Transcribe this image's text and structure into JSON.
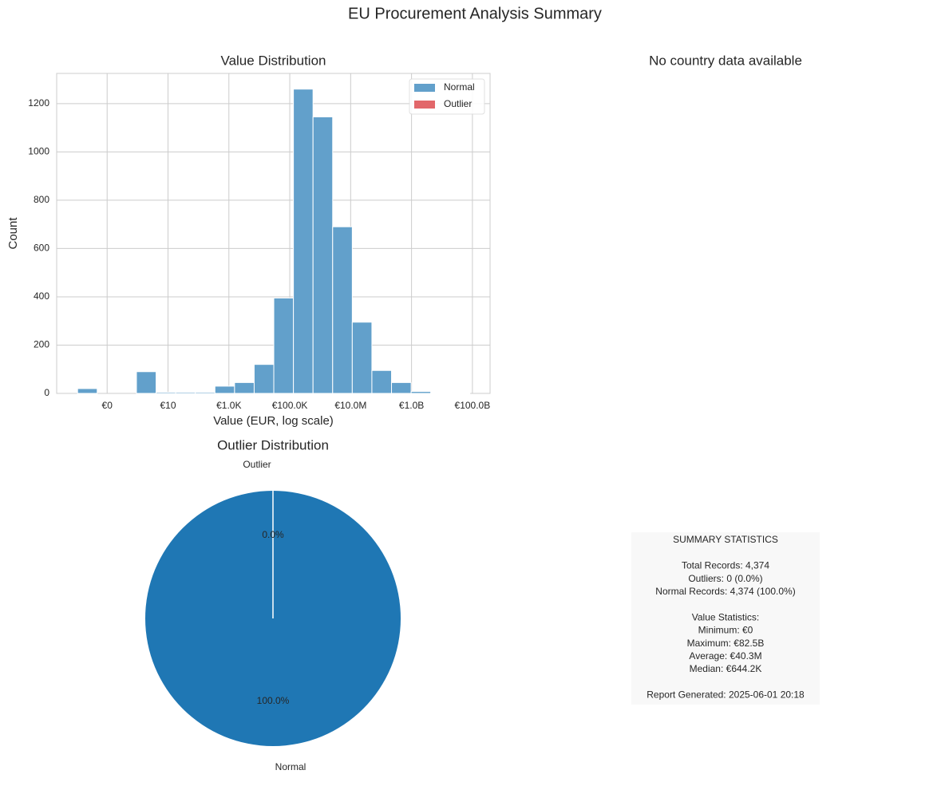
{
  "title": "EU Procurement Analysis Summary",
  "chart_data": [
    {
      "type": "histogram",
      "title": "Value Distribution",
      "x_label": "Value (EUR, log scale)",
      "y_label": "Count",
      "log_x": true,
      "grid": true,
      "legend": "upper right",
      "bins": [
        0.0107,
        0.0472,
        0.208,
        0.919,
        4.06,
        17.9,
        78.9,
        348,
        1535,
        6770,
        29850,
        131700,
        580700,
        2562000,
        11300000,
        49830000,
        219800000,
        969400000,
        4276000000,
        18860000000,
        82500000000
      ],
      "series": [
        {
          "name": "Normal",
          "color": "#62a0cb",
          "values": [
            20,
            0,
            0,
            90,
            5,
            5,
            5,
            30,
            45,
            120,
            395,
            1260,
            1145,
            690,
            295,
            95,
            45,
            8,
            1,
            1
          ]
        },
        {
          "name": "Outlier",
          "color": "#e2676a",
          "values": [
            0,
            0,
            0,
            0,
            0,
            0,
            0,
            0,
            0,
            0,
            0,
            0,
            0,
            0,
            0,
            0,
            0,
            0,
            0,
            0
          ]
        }
      ],
      "xlim": [
        0.0022,
        380000000000
      ],
      "xticks": [
        {
          "value": 0.1,
          "label": "€0"
        },
        {
          "value": 10,
          "label": "€10"
        },
        {
          "value": 1000,
          "label": "€1.0K"
        },
        {
          "value": 100000,
          "label": "€100.0K"
        },
        {
          "value": 10000000,
          "label": "€10.0M"
        },
        {
          "value": 1000000000,
          "label": "€1.0B"
        },
        {
          "value": 100000000000,
          "label": "€100.0B"
        }
      ],
      "ylim": [
        0,
        1325
      ],
      "yticks": [
        0,
        200,
        400,
        600,
        800,
        1000,
        1200
      ]
    },
    {
      "type": "text",
      "title": "No country data available"
    },
    {
      "type": "pie",
      "title": "Outlier Distribution",
      "labels": [
        "Outlier",
        "Normal"
      ],
      "values": [
        0,
        100
      ],
      "value_labels": [
        "0.0%",
        "100.0%"
      ],
      "colors": [
        "#d62728",
        "#1f77b4"
      ]
    }
  ],
  "summary": {
    "title": "SUMMARY STATISTICS",
    "sections": [
      [
        "Total Records: 4,374",
        "Outliers: 0 (0.0%)",
        "Normal Records: 4,374 (100.0%)"
      ],
      [
        "Value Statistics:",
        "Minimum: €0",
        "Maximum: €82.5B",
        "Average: €40.3M",
        "Median: €644.2K"
      ],
      [
        "Report Generated: 2025-06-01 20:18"
      ]
    ]
  }
}
